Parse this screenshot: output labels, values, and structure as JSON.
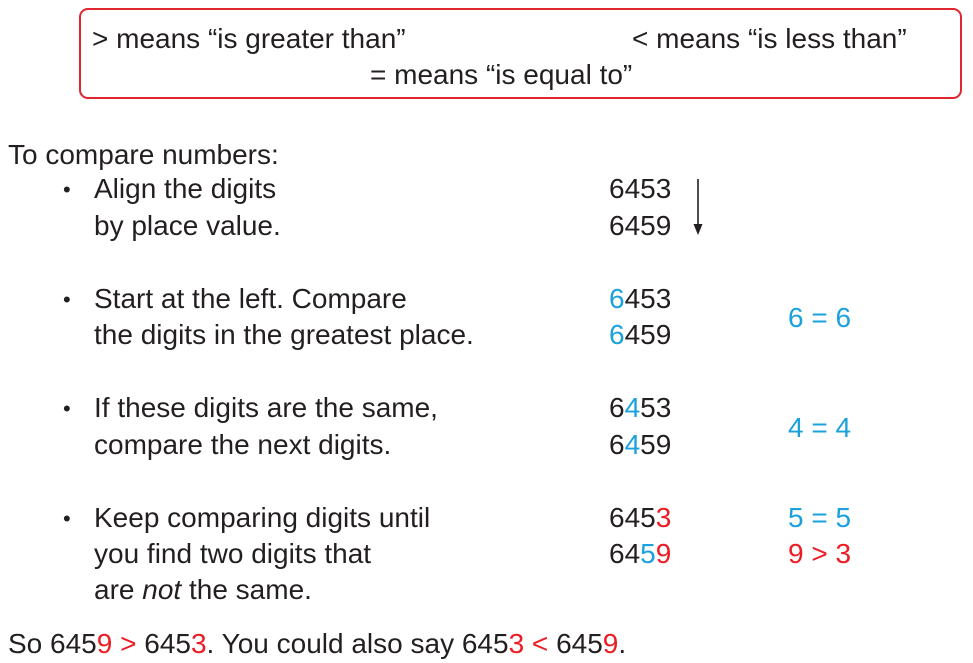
{
  "definitions": {
    "greater": "> means “is greater than”",
    "less": "< means “is less than”",
    "equal": "= means “is equal to”"
  },
  "intro": "To compare numbers:",
  "steps": [
    {
      "bullet": "•",
      "lines": [
        "Align the digits",
        "by place value."
      ]
    },
    {
      "bullet": "•",
      "lines": [
        "Start at the left. Compare",
        "the digits in the greatest place."
      ]
    },
    {
      "bullet": "•",
      "lines": [
        "If these digits are the same,",
        "compare the next digits."
      ]
    },
    {
      "bullet": "•",
      "lines": [
        "Keep comparing digits until",
        "you find two digits that",
        "are ",
        "not",
        " the same."
      ]
    }
  ],
  "numbers": {
    "step1": {
      "top": "6453",
      "bottom": "6459"
    },
    "step2": {
      "top_a": "6",
      "top_b": "453",
      "bottom_a": "6",
      "bottom_b": "459",
      "comparison": "6 = 6"
    },
    "step3": {
      "top_a": "6",
      "top_b": "4",
      "top_c": "53",
      "bottom_a": "6",
      "bottom_b": "4",
      "bottom_c": "59",
      "comparison": "4 = 4"
    },
    "step4": {
      "top_a": "645",
      "top_b": "3",
      "bottom_a": "64",
      "bottom_b": "5",
      "bottom_c": "9",
      "comparison_1": "5 = 5",
      "comparison_2": "9 > 3"
    }
  },
  "conclusion": {
    "p1": "So 645",
    "p2": "9",
    "p3": " > ",
    "p4": "645",
    "p5": "3",
    "p6": ". You could also say 645",
    "p7": "3",
    "p8": " < ",
    "p9": "645",
    "p10": "9",
    "p11": "."
  },
  "colors": {
    "box_border": "#e0262e",
    "blue": "#1ba1dc",
    "red": "#ed1c24",
    "text": "#231f20"
  },
  "icons": {
    "arrow": "down-arrow-icon"
  }
}
